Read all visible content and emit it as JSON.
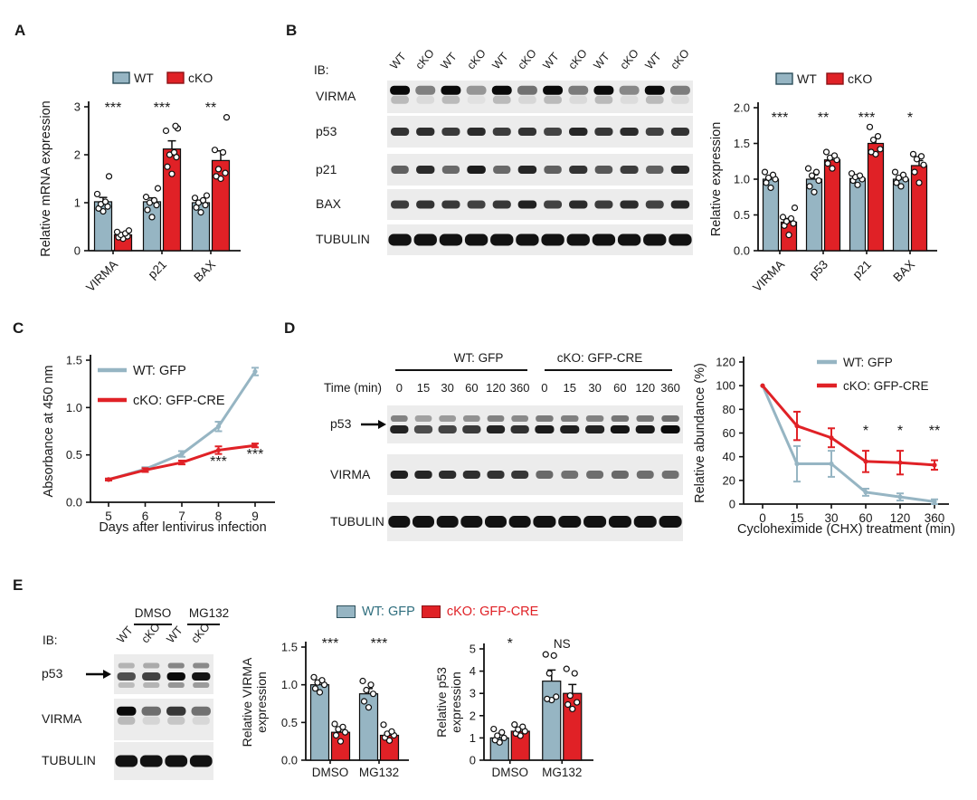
{
  "colors": {
    "wt_fill": "#96b5c3",
    "cko_fill": "#e02126",
    "wt_text": "#2f6e7e",
    "cko_text": "#e02126",
    "band": "#0a0a0a",
    "axis": "#111111"
  },
  "panels": {
    "A": {
      "label": "A"
    },
    "B": {
      "label": "B",
      "blot": {
        "ib_label": "IB:",
        "lane_labels": [
          "WT",
          "cKO",
          "WT",
          "cKO",
          "WT",
          "cKO",
          "WT",
          "cKO",
          "WT",
          "cKO",
          "WT",
          "cKO"
        ],
        "rows": [
          {
            "label": "VIRMA",
            "type": "smear",
            "lanes": [
              1,
              0.35,
              1,
              0.22,
              1,
              0.42,
              1,
              0.38,
              1,
              0.3,
              1,
              0.36
            ]
          },
          {
            "label": "p53",
            "type": "single",
            "lanes": [
              0.8,
              0.82,
              0.76,
              0.85,
              0.75,
              0.8,
              0.7,
              0.88,
              0.78,
              0.85,
              0.72,
              0.8
            ]
          },
          {
            "label": "p21",
            "type": "single",
            "lanes": [
              0.55,
              0.85,
              0.5,
              0.92,
              0.5,
              0.88,
              0.55,
              0.8,
              0.6,
              0.75,
              0.55,
              0.85
            ]
          },
          {
            "label": "BAX",
            "type": "single",
            "lanes": [
              0.75,
              0.8,
              0.78,
              0.72,
              0.78,
              0.9,
              0.72,
              0.85,
              0.75,
              0.85,
              0.72,
              0.88
            ]
          },
          {
            "label": "TUBULIN",
            "type": "thick",
            "lanes": [
              1,
              1,
              1,
              1,
              1,
              1,
              1,
              1,
              1,
              1,
              1,
              1
            ]
          }
        ]
      }
    },
    "C": {
      "label": "C"
    },
    "D": {
      "label": "D",
      "blot": {
        "time_label": "Time (min)",
        "group_headers": [
          "WT: GFP",
          "cKO: GFP-CRE"
        ],
        "time_points": [
          "0",
          "15",
          "30",
          "60",
          "120",
          "360",
          "0",
          "15",
          "30",
          "60",
          "120",
          "360"
        ],
        "rows": [
          {
            "label": "p53",
            "arrow": true,
            "type": "doublet",
            "lanes": [
              0.85,
              0.6,
              0.65,
              0.72,
              0.85,
              0.78,
              0.9,
              0.88,
              0.85,
              0.95,
              0.92,
              1
            ]
          },
          {
            "label": "VIRMA",
            "type": "single",
            "lanes": [
              0.9,
              0.88,
              0.85,
              0.82,
              0.8,
              0.78,
              0.5,
              0.45,
              0.47,
              0.5,
              0.47,
              0.45
            ]
          },
          {
            "label": "TUBULIN",
            "type": "thick",
            "lanes": [
              1,
              1,
              1,
              1,
              1,
              1,
              1,
              1,
              1,
              1,
              1,
              1
            ]
          }
        ]
      }
    },
    "E": {
      "label": "E",
      "blot": {
        "ib_label": "IB:",
        "group_headers": [
          "DMSO",
          "MG132"
        ],
        "lane_labels": [
          "WT",
          "cKO",
          "WT",
          "cKO"
        ],
        "rows": [
          {
            "label": "p53",
            "arrow": true,
            "type": "triplet",
            "lanes": [
              0.55,
              0.65,
              1,
              0.95
            ]
          },
          {
            "label": "VIRMA",
            "type": "smear",
            "lanes": [
              1,
              0.45,
              0.75,
              0.42
            ]
          },
          {
            "label": "TUBULIN",
            "type": "thick",
            "lanes": [
              1,
              1,
              1,
              1
            ]
          }
        ]
      },
      "legend": [
        {
          "label": "WT: GFP"
        },
        {
          "label": "cKO: GFP-CRE"
        }
      ]
    }
  },
  "chart_data": [
    {
      "id": "panel_a",
      "type": "bar",
      "ylabel": "Relative mRNA expression",
      "categories": [
        "VIRMA",
        "p21",
        "BAX"
      ],
      "ylim": [
        0,
        3
      ],
      "yticks": [
        0,
        1,
        2,
        3
      ],
      "ytick_labels": [
        "0",
        "1",
        "2",
        "3"
      ],
      "legend": [
        "WT",
        "cKO"
      ],
      "sig": [
        "***",
        "***",
        "**"
      ],
      "series": [
        {
          "name": "WT",
          "values": [
            1.02,
            1.02,
            1.0
          ],
          "errors": [
            0.09,
            0.08,
            0.05
          ],
          "points": [
            [
              0.82,
              0.88,
              0.92,
              0.97,
              1.02,
              1.18,
              1.55
            ],
            [
              0.7,
              0.85,
              0.95,
              1.0,
              1.05,
              1.12,
              1.3
            ],
            [
              0.8,
              0.9,
              0.95,
              1.0,
              1.05,
              1.1,
              1.15
            ]
          ]
        },
        {
          "name": "cKO",
          "values": [
            0.33,
            2.12,
            1.88
          ],
          "errors": [
            0.03,
            0.17,
            0.2
          ],
          "points": [
            [
              0.25,
              0.28,
              0.3,
              0.33,
              0.36,
              0.39,
              0.42
            ],
            [
              1.6,
              1.75,
              1.95,
              2.0,
              2.05,
              2.5,
              2.55,
              2.6
            ],
            [
              1.5,
              1.55,
              1.62,
              1.7,
              2.05,
              2.1,
              2.78
            ]
          ]
        }
      ]
    },
    {
      "id": "panel_b",
      "type": "bar",
      "ylabel": "Relative expression",
      "categories": [
        "VIRMA",
        "p53",
        "p21",
        "BAX"
      ],
      "ylim": [
        0,
        2
      ],
      "yticks": [
        0,
        0.5,
        1,
        1.5,
        2
      ],
      "ytick_labels": [
        "0.0",
        "0.5",
        "1.0",
        "1.5",
        "2.0"
      ],
      "legend": [
        "WT",
        "cKO"
      ],
      "sig": [
        "***",
        "**",
        "***",
        "*"
      ],
      "series": [
        {
          "name": "WT",
          "values": [
            1.0,
            1.0,
            1.01,
            1.0
          ],
          "errors": [
            0.04,
            0.06,
            0.03,
            0.04
          ],
          "points": [
            [
              0.88,
              0.95,
              1.0,
              1.02,
              1.06,
              1.1
            ],
            [
              0.82,
              0.9,
              0.98,
              1.05,
              1.1,
              1.15
            ],
            [
              0.92,
              0.98,
              1.0,
              1.03,
              1.05,
              1.08
            ],
            [
              0.9,
              0.95,
              1.0,
              1.02,
              1.06,
              1.1
            ]
          ]
        },
        {
          "name": "cKO",
          "values": [
            0.4,
            1.27,
            1.5,
            1.19
          ],
          "errors": [
            0.05,
            0.04,
            0.07,
            0.07
          ],
          "points": [
            [
              0.22,
              0.35,
              0.38,
              0.41,
              0.45,
              0.47,
              0.6
            ],
            [
              1.15,
              1.22,
              1.27,
              1.3,
              1.33,
              1.38
            ],
            [
              1.35,
              1.38,
              1.42,
              1.55,
              1.6,
              1.73
            ],
            [
              0.95,
              1.1,
              1.2,
              1.28,
              1.32,
              1.35
            ]
          ]
        }
      ]
    },
    {
      "id": "panel_c",
      "type": "line",
      "xlabel": "Days after lentivirus infection",
      "ylabel": "Absorbance at 450 nm",
      "x_labels": [
        "5",
        "6",
        "7",
        "8",
        "9"
      ],
      "ylim": [
        0,
        1.5
      ],
      "yticks": [
        0,
        0.5,
        1,
        1.5
      ],
      "ytick_labels": [
        "0.0",
        "0.5",
        "1.0",
        "1.5"
      ],
      "series": [
        {
          "name": "WT: GFP",
          "values": [
            0.24,
            0.35,
            0.51,
            0.8,
            1.38
          ],
          "errors": [
            0.01,
            0.02,
            0.03,
            0.05,
            0.04
          ]
        },
        {
          "name": "cKO: GFP-CRE",
          "values": [
            0.24,
            0.34,
            0.42,
            0.55,
            0.6
          ],
          "errors": [
            0.01,
            0.02,
            0.02,
            0.04,
            0.02
          ]
        }
      ],
      "annotations": [
        {
          "i": 3,
          "y": 0.38,
          "label": "***"
        },
        {
          "i": 4,
          "y": 0.46,
          "label": "***"
        }
      ],
      "legend_position": "top-left"
    },
    {
      "id": "panel_d",
      "type": "line",
      "xlabel": "Cycloheximide (CHX) treatment (min)",
      "ylabel": "Relative abundance (%)",
      "x_labels": [
        "0",
        "15",
        "30",
        "60",
        "120",
        "360"
      ],
      "ylim": [
        0,
        120
      ],
      "yticks": [
        0,
        20,
        40,
        60,
        80,
        100,
        120
      ],
      "ytick_labels": [
        "0",
        "20",
        "40",
        "60",
        "80",
        "100",
        "120"
      ],
      "series": [
        {
          "name": "WT: GFP",
          "values": [
            100,
            34,
            34,
            10,
            6,
            2
          ],
          "errors": [
            0,
            15,
            11,
            3,
            3,
            2
          ]
        },
        {
          "name": "cKO: GFP-CRE",
          "values": [
            100,
            66,
            56,
            36,
            35,
            33
          ],
          "errors": [
            0,
            12,
            8,
            9,
            10,
            4
          ]
        }
      ],
      "annotations": [
        {
          "i": 3,
          "y": 58,
          "label": "*"
        },
        {
          "i": 4,
          "y": 58,
          "label": "*"
        },
        {
          "i": 5,
          "y": 58,
          "label": "**"
        }
      ],
      "legend_position": "top-right"
    },
    {
      "id": "panel_e_virma",
      "type": "bar",
      "ylabel_lines": [
        "Relative VIRMA",
        "expression"
      ],
      "categories": [
        "DMSO",
        "MG132"
      ],
      "ylim": [
        0,
        1.5
      ],
      "yticks": [
        0,
        0.5,
        1,
        1.5
      ],
      "ytick_labels": [
        "0.0",
        "0.5",
        "1.0",
        "1.5"
      ],
      "sig": [
        "***",
        "***"
      ],
      "series": [
        {
          "name": "WT: GFP",
          "values": [
            1.0,
            0.88
          ],
          "errors": [
            0.04,
            0.07
          ],
          "points": [
            [
              0.9,
              0.95,
              1.0,
              1.03,
              1.06,
              1.1
            ],
            [
              0.7,
              0.78,
              0.88,
              0.93,
              1.0,
              1.05
            ]
          ]
        },
        {
          "name": "cKO: GFP-CRE",
          "values": [
            0.37,
            0.33
          ],
          "errors": [
            0.05,
            0.04
          ],
          "points": [
            [
              0.25,
              0.33,
              0.37,
              0.41,
              0.44,
              0.48
            ],
            [
              0.26,
              0.3,
              0.33,
              0.35,
              0.38,
              0.47
            ]
          ]
        }
      ]
    },
    {
      "id": "panel_e_p53",
      "type": "bar",
      "ylabel_lines": [
        "Relative p53",
        "expression"
      ],
      "categories": [
        "DMSO",
        "MG132"
      ],
      "ylim": [
        0,
        5
      ],
      "yticks": [
        0,
        1,
        2,
        3,
        4,
        5
      ],
      "ytick_labels": [
        "0",
        "1",
        "2",
        "3",
        "4",
        "5"
      ],
      "sig": [
        "*",
        "NS"
      ],
      "series": [
        {
          "name": "WT: GFP",
          "values": [
            1.0,
            3.55
          ],
          "errors": [
            0.15,
            0.5
          ],
          "points": [
            [
              0.8,
              0.9,
              1.0,
              1.1,
              1.25,
              1.4
            ],
            [
              2.7,
              2.75,
              2.85,
              3.9,
              4.7,
              4.75
            ]
          ]
        },
        {
          "name": "cKO: GFP-CRE",
          "values": [
            1.3,
            3.0
          ],
          "errors": [
            0.12,
            0.4
          ],
          "points": [
            [
              1.1,
              1.2,
              1.3,
              1.38,
              1.5,
              1.6
            ],
            [
              2.3,
              2.5,
              2.6,
              2.9,
              3.9,
              4.1
            ]
          ]
        }
      ]
    }
  ]
}
